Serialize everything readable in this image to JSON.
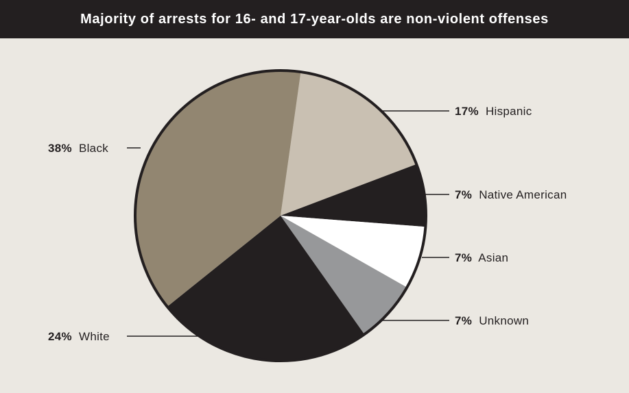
{
  "chart_data": {
    "type": "pie",
    "title": "Majority of arrests for 16- and 17-year-olds are non-violent offenses",
    "slices": [
      {
        "category": "Hispanic",
        "value": 17,
        "label": "17%",
        "color": "#c9c0b2"
      },
      {
        "category": "Native American",
        "value": 7,
        "label": "7%",
        "color": "#231f20"
      },
      {
        "category": "Asian",
        "value": 7,
        "label": "7%",
        "color": "#ffffff"
      },
      {
        "category": "Unknown",
        "value": 7,
        "label": "7%",
        "color": "#97989a"
      },
      {
        "category": "White",
        "value": 24,
        "label": "24%",
        "color": "#231f20"
      },
      {
        "category": "Black",
        "value": 38,
        "label": "38%",
        "color": "#928671"
      }
    ],
    "legend": "none"
  }
}
